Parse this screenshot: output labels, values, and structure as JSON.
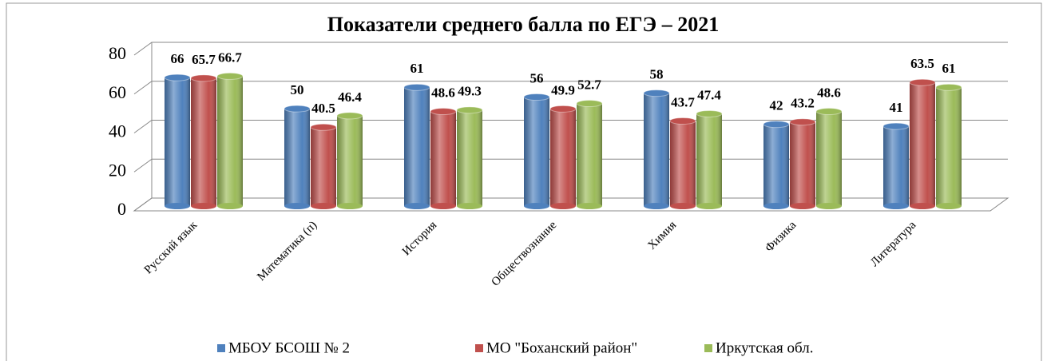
{
  "chart_data": {
    "type": "bar",
    "title": "Показатели среднего балла по ЕГЭ – 2021",
    "categories": [
      "Русский язык",
      "Математика (п)",
      "История",
      "Обществознание",
      "Химия",
      "Физика",
      "Литература"
    ],
    "series": [
      {
        "name": "МБОУ БСОШ № 2",
        "color": "#4f81bd",
        "values": [
          66,
          50,
          61,
          56,
          58,
          42,
          41
        ]
      },
      {
        "name": "МО \"Боханский район\"",
        "color": "#c0504d",
        "values": [
          65.7,
          40.5,
          48.6,
          49.9,
          43.7,
          43.2,
          63.5
        ]
      },
      {
        "name": "Иркутская обл.",
        "color": "#9bbb59",
        "values": [
          66.7,
          46.4,
          49.3,
          52.7,
          47.4,
          48.6,
          61
        ]
      }
    ],
    "ylim": [
      0,
      80
    ],
    "yticks": [
      0,
      20,
      40,
      60,
      80
    ],
    "grid": true,
    "legend": "bottom"
  }
}
